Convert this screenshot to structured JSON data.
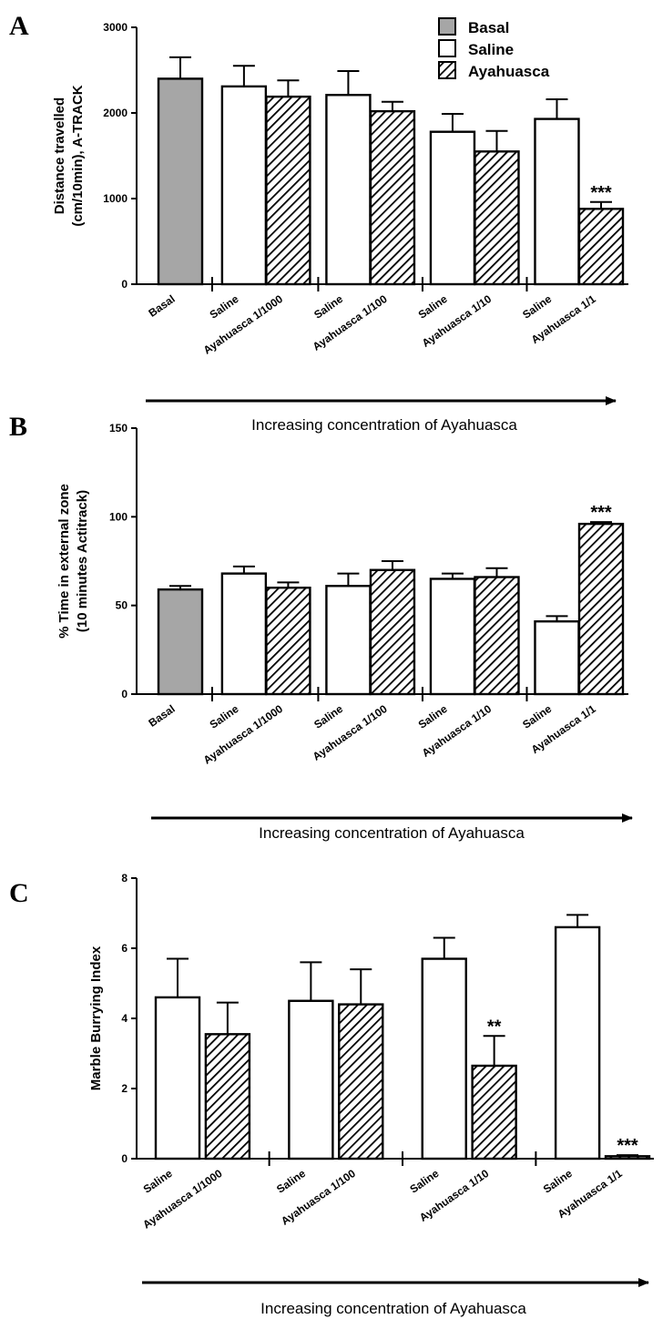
{
  "legend": {
    "items": [
      {
        "name": "Basal",
        "fill": "basal"
      },
      {
        "name": "Saline",
        "fill": "saline"
      },
      {
        "name": "Ayahuasca",
        "fill": "ayahuasca"
      }
    ]
  },
  "colors": {
    "basal": "#a6a6a6",
    "saline": "#ffffff",
    "stroke": "#000000"
  },
  "arrow_text": "Increasing concentration of Ayahuasca",
  "chart_data": [
    {
      "panel": "A",
      "type": "bar",
      "ylabel_lines": [
        "Distance travelled",
        "(cm/10min), A-TRACK"
      ],
      "ylim": [
        0,
        3000
      ],
      "yticks": [
        0,
        1000,
        2000,
        3000
      ],
      "categories": [
        "Basal",
        "Saline",
        "Ayahuasca 1/1000",
        "Saline",
        "Ayahuasca 1/100",
        "Saline",
        "Ayahuasca 1/10",
        "Saline",
        "Ayahuasca 1/1"
      ],
      "groups": [
        "basal",
        "saline",
        "ayahuasca",
        "saline",
        "ayahuasca",
        "saline",
        "ayahuasca",
        "saline",
        "ayahuasca"
      ],
      "values": [
        2400,
        2310,
        2190,
        2210,
        2020,
        1780,
        1550,
        1930,
        880
      ],
      "errors": [
        250,
        240,
        190,
        280,
        110,
        210,
        240,
        230,
        80
      ],
      "annotations": [
        {
          "index": 8,
          "text": "***"
        }
      ],
      "arrow_label": "Increasing concentration of Ayahuasca"
    },
    {
      "panel": "B",
      "type": "bar",
      "ylabel_lines": [
        "% Time in external zone",
        "(10 minutes Actitrack)"
      ],
      "ylim": [
        0,
        150
      ],
      "yticks": [
        0,
        50,
        100,
        150
      ],
      "categories": [
        "Basal",
        "Saline",
        "Ayahuasca 1/1000",
        "Saline",
        "Ayahuasca 1/100",
        "Saline",
        "Ayahuasca 1/10",
        "Saline",
        "Ayahuasca 1/1"
      ],
      "groups": [
        "basal",
        "saline",
        "ayahuasca",
        "saline",
        "ayahuasca",
        "saline",
        "ayahuasca",
        "saline",
        "ayahuasca"
      ],
      "values": [
        59,
        68,
        60,
        61,
        70,
        65,
        66,
        41,
        96
      ],
      "errors": [
        2,
        4,
        3,
        7,
        5,
        3,
        5,
        3,
        1
      ],
      "annotations": [
        {
          "index": 8,
          "text": "***"
        }
      ],
      "arrow_label": "Increasing concentration of Ayahuasca"
    },
    {
      "panel": "C",
      "type": "bar",
      "ylabel_lines": [
        "Marble Burrying Index"
      ],
      "ylim": [
        0,
        8
      ],
      "yticks": [
        0,
        2,
        4,
        6,
        8
      ],
      "categories": [
        "Saline",
        "Ayahuasca 1/1000",
        "Saline",
        "Ayahuasca 1/100",
        "Saline",
        "Ayahuasca 1/10",
        "Saline",
        "Ayahuasca 1/1"
      ],
      "groups": [
        "saline",
        "ayahuasca",
        "saline",
        "ayahuasca",
        "saline",
        "ayahuasca",
        "saline",
        "ayahuasca"
      ],
      "values": [
        4.6,
        3.55,
        4.5,
        4.4,
        5.7,
        2.65,
        6.6,
        0.07
      ],
      "errors": [
        1.1,
        0.9,
        1.1,
        1.0,
        0.6,
        0.85,
        0.35,
        0.03
      ],
      "annotations": [
        {
          "index": 5,
          "text": "**"
        },
        {
          "index": 7,
          "text": "***"
        }
      ],
      "arrow_label": "Increasing concentration of Ayahuasca"
    }
  ]
}
